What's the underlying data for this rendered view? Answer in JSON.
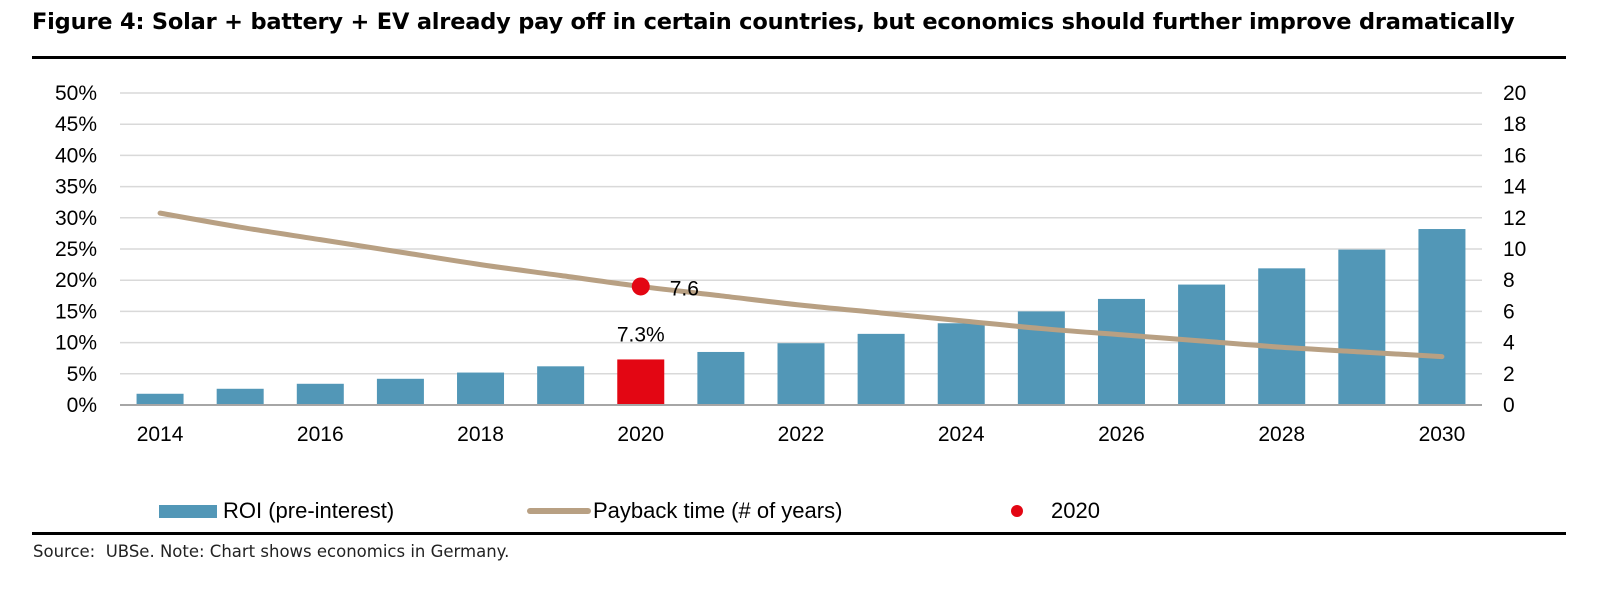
{
  "figure": {
    "title": "Figure 4: Solar + battery + EV already pay off in certain countries, but economics should further improve dramatically",
    "source": "Source:  UBSe. Note: Chart shows economics in Germany."
  },
  "chart_data": {
    "type": "bar",
    "x": [
      2014,
      2015,
      2016,
      2017,
      2018,
      2019,
      2020,
      2021,
      2022,
      2023,
      2024,
      2025,
      2026,
      2027,
      2028,
      2029,
      2030
    ],
    "x_tick_labels": [
      "2014",
      "2016",
      "2018",
      "2020",
      "2022",
      "2024",
      "2026",
      "2028",
      "2030"
    ],
    "series": [
      {
        "name": "ROI (pre-interest)",
        "type": "bar",
        "axis": "left",
        "values": [
          1.8,
          2.6,
          3.4,
          4.2,
          5.2,
          6.2,
          7.3,
          8.5,
          9.9,
          11.4,
          13.1,
          15.0,
          17.0,
          19.3,
          21.9,
          24.9,
          28.2
        ]
      },
      {
        "name": "Payback time (# of years)",
        "type": "line",
        "axis": "right",
        "values": [
          12.3,
          11.4,
          10.6,
          9.8,
          9.0,
          8.3,
          7.6,
          7.0,
          6.4,
          5.9,
          5.4,
          4.9,
          4.5,
          4.1,
          3.7,
          3.4,
          3.1
        ]
      }
    ],
    "highlight": {
      "name": "2020",
      "year": 2020,
      "bar_label": "7.3%",
      "point_label": "7.6"
    },
    "y_left": {
      "ticks": [
        "0%",
        "5%",
        "10%",
        "15%",
        "20%",
        "25%",
        "30%",
        "35%",
        "40%",
        "45%",
        "50%"
      ],
      "range": [
        0,
        50
      ]
    },
    "y_right": {
      "ticks": [
        "0",
        "2",
        "4",
        "6",
        "8",
        "10",
        "12",
        "14",
        "16",
        "18",
        "20"
      ],
      "range": [
        0,
        20
      ]
    },
    "grid": true,
    "legend_position": "bottom",
    "colors": {
      "bar": "#5297b7",
      "highlight": "#e30613",
      "line": "#b8a083",
      "grid": "#d9d9d9",
      "axis": "#a6a6a6"
    }
  }
}
